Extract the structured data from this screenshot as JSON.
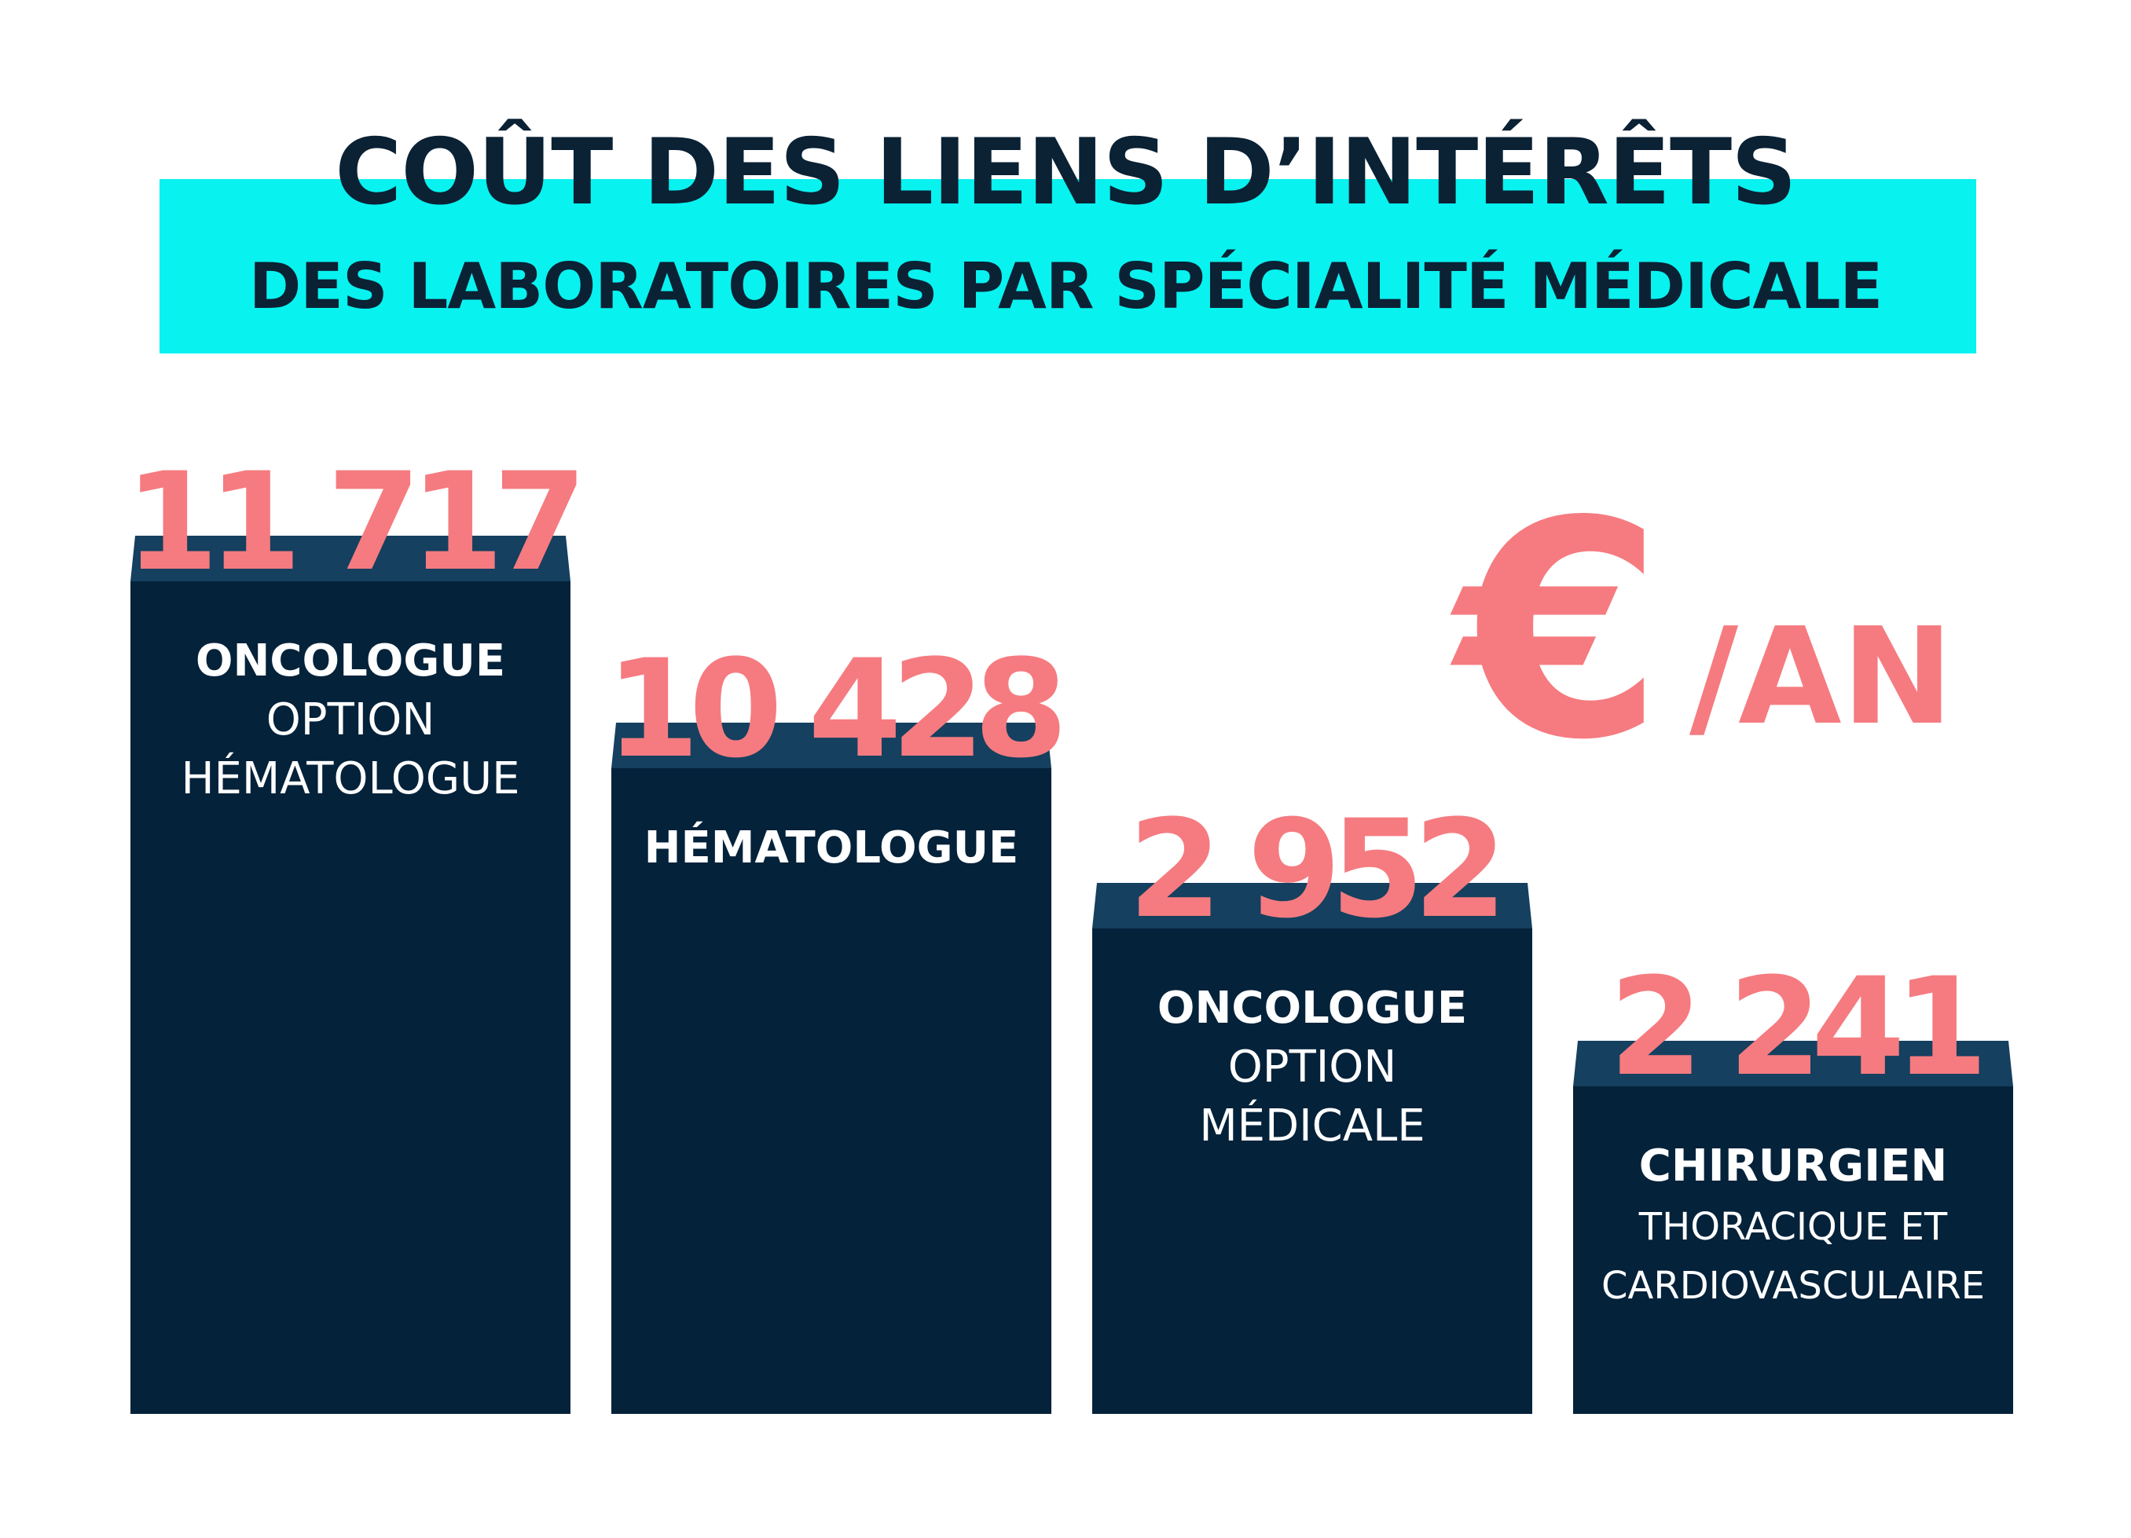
{
  "title": {
    "main": "COÛT DES LIENS D’INTÉRÊTS",
    "sub": "DES  LABORATOIRES PAR SPÉCIALITÉ MÉDICALE"
  },
  "unit": {
    "symbol": "€",
    "suffix": "/AN"
  },
  "colors": {
    "title_band": "#08f2f0",
    "title_text": "#0b2134",
    "bar_body": "#04223a",
    "bar_cap": "#15405f",
    "value": "#f57b80",
    "bar_text": "#ffffff"
  },
  "chart_data": {
    "type": "bar",
    "categories": [
      "ONCOLOGUE OPTION HÉMATOLOGUE",
      "HÉMATOLOGUE",
      "ONCOLOGUE OPTION MÉDICALE",
      "CHIRURGIEN THORACIQUE ET CARDIOVASCULAIRE"
    ],
    "values": [
      11717,
      10428,
      2952,
      2241
    ],
    "value_labels": [
      "11 717",
      "10 428",
      "2 952",
      "2 241"
    ],
    "bar_labels": [
      {
        "bold": "ONCOLOGUE",
        "lines": [
          "OPTION",
          "HÉMATOLOGUE"
        ]
      },
      {
        "bold": "HÉMATOLOGUE",
        "lines": []
      },
      {
        "bold": "ONCOLOGUE",
        "lines": [
          "OPTION",
          "MÉDICALE"
        ]
      },
      {
        "bold": "CHIRURGIEN",
        "lines": [
          "THORACIQUE ET",
          "CARDIOVASCULAIRE"
        ]
      }
    ],
    "unit": "€/AN",
    "xlabel": "",
    "ylabel": "",
    "grid": false
  }
}
